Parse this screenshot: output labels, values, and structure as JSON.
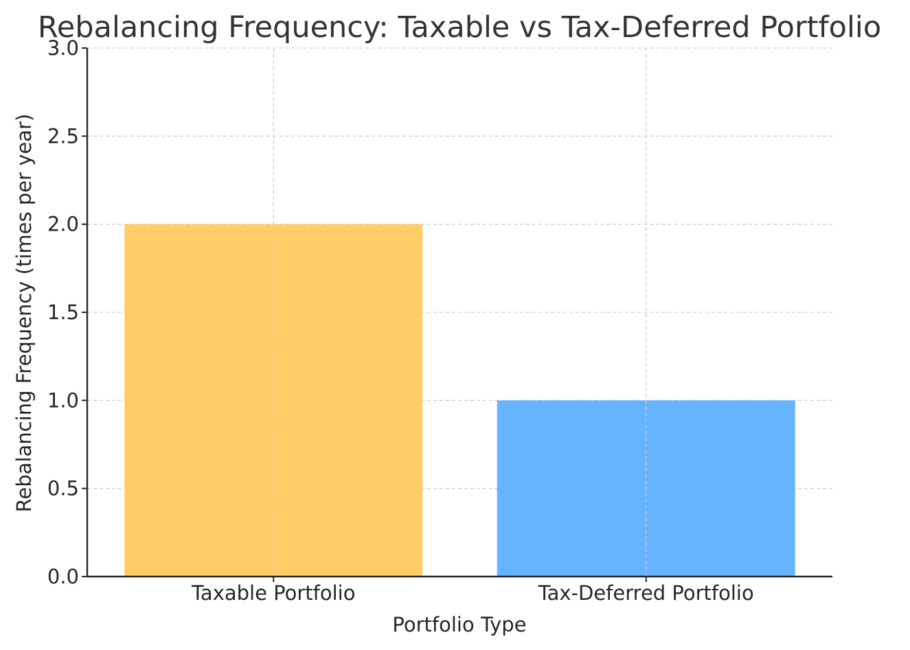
{
  "chart_data": {
    "type": "bar",
    "title": "Rebalancing Frequency: Taxable vs Tax-Deferred Portfolio",
    "xlabel": "Portfolio Type",
    "ylabel": "Rebalancing Frequency (times per year)",
    "categories": [
      "Taxable Portfolio",
      "Tax-Deferred Portfolio"
    ],
    "values": [
      2,
      1
    ],
    "colors": [
      "#FFCC66",
      "#66B3FF"
    ],
    "ylim": [
      0,
      3
    ],
    "yticks": [
      "0.0",
      "0.5",
      "1.0",
      "1.5",
      "2.0",
      "2.5",
      "3.0"
    ],
    "grid": true,
    "legend": "none"
  }
}
